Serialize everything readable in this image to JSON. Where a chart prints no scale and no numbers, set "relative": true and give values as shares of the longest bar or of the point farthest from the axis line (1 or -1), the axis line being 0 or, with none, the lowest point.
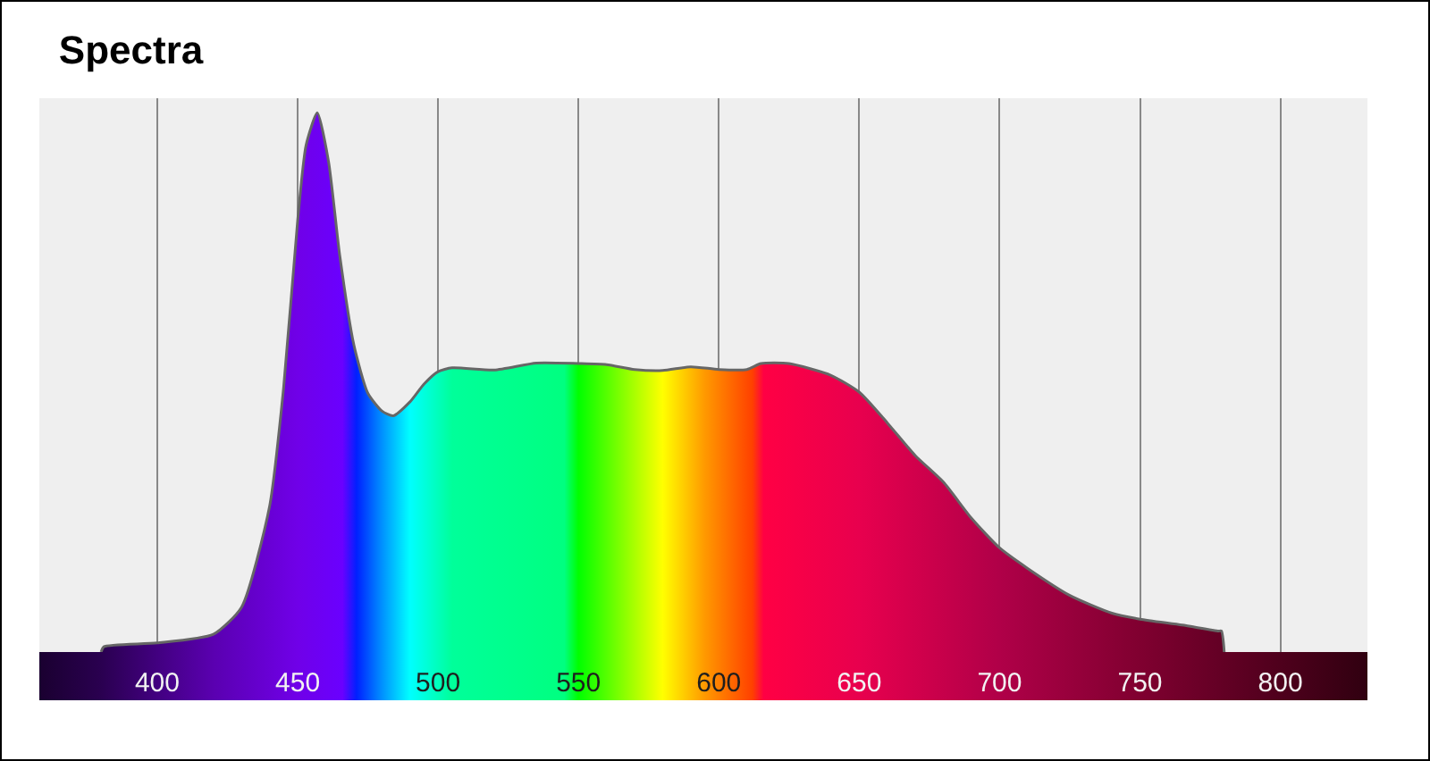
{
  "chart_data": {
    "type": "area",
    "title": "Spectra",
    "relative": true,
    "xlim": [
      358,
      831
    ],
    "xticks": [
      400,
      450,
      500,
      550,
      600,
      650,
      700,
      750,
      800
    ],
    "grid": "x",
    "series": [
      {
        "color": "#666666",
        "x": [
          380,
          381,
          400,
          420,
          430,
          440,
          445,
          450,
          453,
          457,
          461,
          465,
          470,
          475,
          480,
          484,
          490,
          495,
          500,
          505,
          520,
          535,
          550,
          560,
          570,
          580,
          590,
          600,
          610,
          615,
          625,
          640,
          650,
          660,
          670,
          680,
          690,
          700,
          710,
          725,
          740,
          750,
          765,
          778,
          779,
          780
        ],
        "values": [
          0,
          0.01,
          0.017,
          0.033,
          0.083,
          0.27,
          0.49,
          0.8,
          0.94,
          1,
          0.91,
          0.735,
          0.57,
          0.48,
          0.447,
          0.438,
          0.464,
          0.497,
          0.52,
          0.527,
          0.523,
          0.536,
          0.535,
          0.533,
          0.524,
          0.522,
          0.529,
          0.524,
          0.524,
          0.535,
          0.535,
          0.513,
          0.482,
          0.425,
          0.364,
          0.315,
          0.248,
          0.193,
          0.155,
          0.105,
          0.072,
          0.061,
          0.05,
          0.039,
          0.039,
          0
        ]
      }
    ]
  }
}
